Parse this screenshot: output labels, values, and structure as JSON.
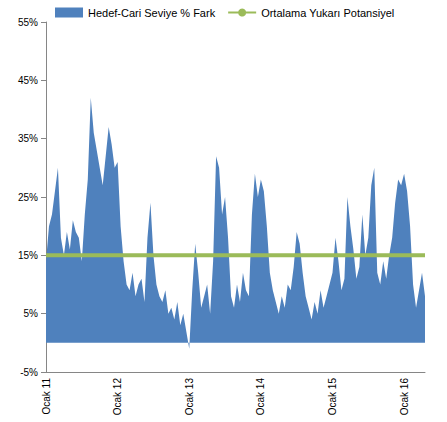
{
  "chart_data": {
    "type": "area",
    "categories": [
      "Ocak 11",
      null,
      null,
      null,
      null,
      null,
      null,
      null,
      null,
      null,
      null,
      null,
      null,
      null,
      null,
      null,
      null,
      null,
      null,
      null,
      null,
      null,
      null,
      null,
      "Ocak 12",
      null,
      null,
      null,
      null,
      null,
      null,
      null,
      null,
      null,
      null,
      null,
      null,
      null,
      null,
      null,
      null,
      null,
      null,
      null,
      null,
      null,
      null,
      null,
      "Ocak 13",
      null,
      null,
      null,
      null,
      null,
      null,
      null,
      null,
      null,
      null,
      null,
      null,
      null,
      null,
      null,
      null,
      null,
      null,
      null,
      null,
      null,
      null,
      null,
      "Ocak 14",
      null,
      null,
      null,
      null,
      null,
      null,
      null,
      null,
      null,
      null,
      null,
      null,
      null,
      null,
      null,
      null,
      null,
      null,
      null,
      null,
      null,
      null,
      null,
      "Ocak 15",
      null,
      null,
      null,
      null,
      null,
      null,
      null,
      null,
      null,
      null,
      null,
      null,
      null,
      null,
      null,
      null,
      null,
      null,
      null,
      null,
      null,
      null,
      null,
      "Ocak 16",
      null,
      null,
      null,
      null,
      null,
      null,
      null
    ],
    "series": [
      {
        "name": "Hedef-Cari Seviye % Fark",
        "type": "area",
        "color": "#4f81bd",
        "values": [
          14,
          20,
          22,
          26,
          30,
          18,
          15,
          19,
          16,
          21,
          19,
          18,
          14,
          22,
          28,
          42,
          36,
          33,
          30,
          27,
          32,
          37,
          34,
          30,
          31,
          20,
          14,
          10,
          9,
          12,
          8,
          10,
          11,
          7,
          18,
          24,
          15,
          10,
          8,
          7,
          9,
          5,
          6,
          4,
          7,
          3,
          5,
          2,
          -1,
          9,
          17,
          12,
          6,
          8,
          10,
          5,
          14,
          32,
          30,
          22,
          25,
          18,
          8,
          6,
          10,
          7,
          12,
          9,
          8,
          22,
          29,
          25,
          28,
          26,
          20,
          12,
          9,
          7,
          5,
          8,
          6,
          10,
          9,
          13,
          19,
          17,
          12,
          8,
          6,
          4,
          7,
          5,
          9,
          6,
          8,
          10,
          12,
          18,
          14,
          9,
          11,
          25,
          20,
          16,
          11,
          13,
          22,
          15,
          18,
          27,
          30,
          12,
          10,
          14,
          11,
          15,
          18,
          24,
          28,
          27,
          29,
          26,
          20,
          10,
          6,
          9,
          12,
          8
        ]
      },
      {
        "name": "Ortalama Yukarı Potansiyel",
        "type": "line",
        "color": "#9bbb59",
        "values": [
          15,
          15,
          15,
          15,
          15,
          15,
          15,
          15,
          15,
          15,
          15,
          15,
          15,
          15,
          15,
          15,
          15,
          15,
          15,
          15,
          15,
          15,
          15,
          15,
          15,
          15,
          15,
          15,
          15,
          15,
          15,
          15,
          15,
          15,
          15,
          15,
          15,
          15,
          15,
          15,
          15,
          15,
          15,
          15,
          15,
          15,
          15,
          15,
          15,
          15,
          15,
          15,
          15,
          15,
          15,
          15,
          15,
          15,
          15,
          15,
          15,
          15,
          15,
          15,
          15,
          15,
          15,
          15,
          15,
          15,
          15,
          15,
          15,
          15,
          15,
          15,
          15,
          15,
          15,
          15,
          15,
          15,
          15,
          15,
          15,
          15,
          15,
          15,
          15,
          15,
          15,
          15,
          15,
          15,
          15,
          15,
          15,
          15,
          15,
          15,
          15,
          15,
          15,
          15,
          15,
          15,
          15,
          15,
          15,
          15,
          15,
          15,
          15,
          15,
          15,
          15,
          15,
          15,
          15,
          15,
          15,
          15,
          15,
          15,
          15,
          15,
          15,
          15
        ]
      }
    ],
    "ylim": [
      -5,
      55
    ],
    "yticks": [
      {
        "value": -5,
        "label": "-5%"
      },
      {
        "value": 5,
        "label": "5%"
      },
      {
        "value": 15,
        "label": "15%"
      },
      {
        "value": 25,
        "label": "25%"
      },
      {
        "value": 35,
        "label": "35%"
      },
      {
        "value": 45,
        "label": "45%"
      },
      {
        "value": 55,
        "label": "55%"
      }
    ],
    "grid": false,
    "legend": "top-left"
  }
}
